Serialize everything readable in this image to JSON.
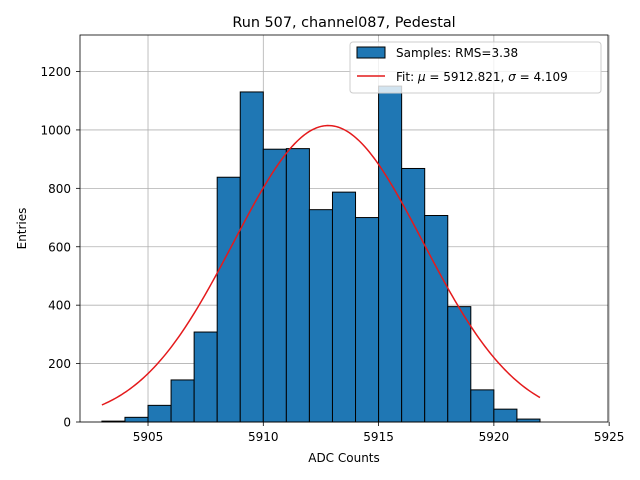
{
  "chart_data": {
    "type": "histogram",
    "title": "Run 507, channel087, Pedestal",
    "xlabel": "ADC Counts",
    "ylabel": "Entries",
    "xlim": [
      5902.05,
      5924.95
    ],
    "ylim": [
      0,
      1325
    ],
    "grid": true,
    "xticks": [
      5905,
      5910,
      5915,
      5920,
      5925
    ],
    "yticks": [
      0,
      200,
      400,
      600,
      800,
      1000,
      1200
    ],
    "bars": {
      "name": "Samples",
      "color": "#1f77b4",
      "edgecolor": "#000000",
      "bin_edges": [
        5903,
        5904,
        5905,
        5906,
        5907,
        5908,
        5909,
        5910,
        5911,
        5912,
        5913,
        5914,
        5915,
        5916,
        5917,
        5918,
        5919,
        5920,
        5921,
        5922
      ],
      "counts": [
        3,
        16,
        57,
        144,
        308,
        838,
        1130,
        934,
        936,
        727,
        787,
        700,
        1150,
        868,
        707,
        395,
        110,
        44,
        10
      ]
    },
    "fit": {
      "name": "Fit",
      "color": "#e41a1c",
      "mu": 5912.821,
      "sigma": 4.109,
      "amplitude": 1015,
      "x_range": [
        5903,
        5922
      ]
    },
    "legend": {
      "position": "top-right",
      "entries": [
        {
          "key": "bars",
          "label": "Samples: RMS=3.38"
        },
        {
          "key": "fit",
          "label_prefix": "Fit: ",
          "mu_symbol": "μ",
          "mu_text": " = 5912.821, ",
          "sigma_symbol": "σ",
          "sigma_text": " = 4.109"
        }
      ]
    }
  }
}
